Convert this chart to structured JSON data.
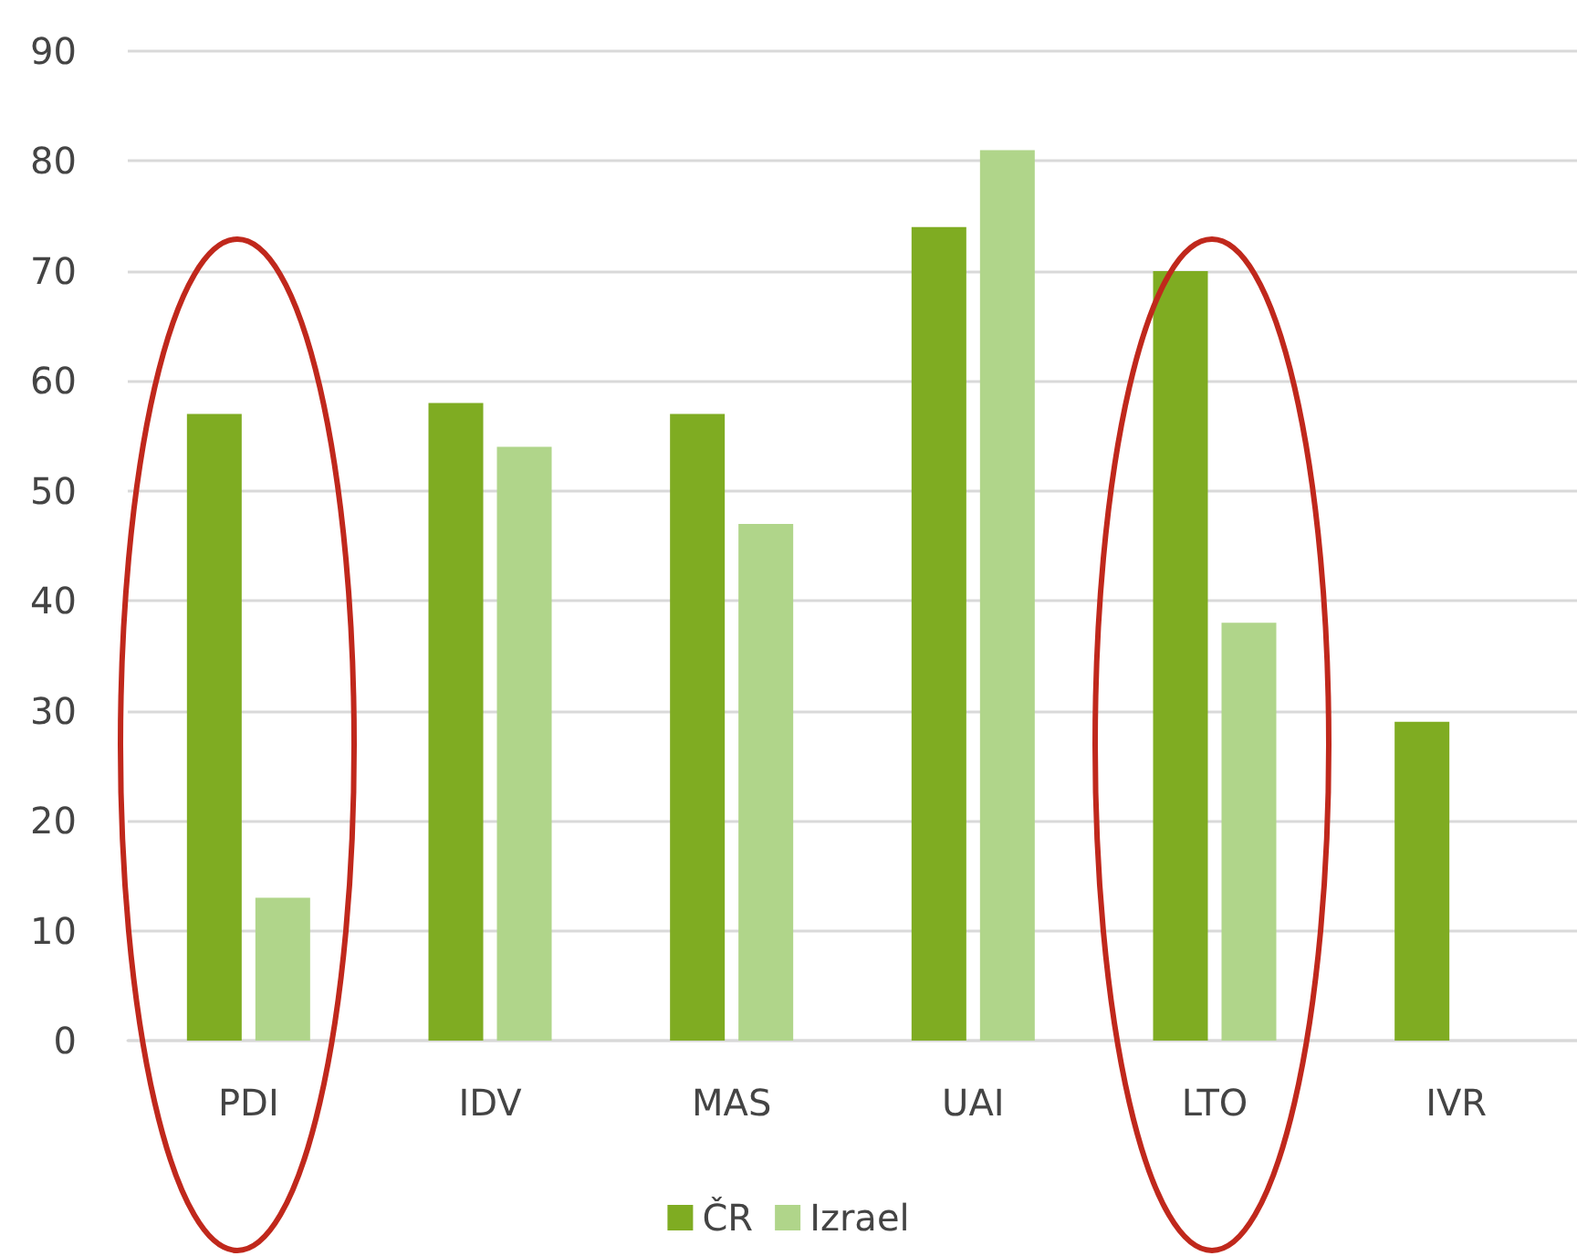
{
  "chart_data": {
    "type": "bar",
    "categories": [
      "PDI",
      "IDV",
      "MAS",
      "UAI",
      "LTO",
      "IVR"
    ],
    "series": [
      {
        "name": "ČR",
        "color": "#7fac22",
        "values": [
          57,
          58,
          57,
          74,
          70,
          29
        ]
      },
      {
        "name": "Izrael",
        "color": "#b0d58a",
        "values": [
          13,
          54,
          47,
          81,
          38,
          null
        ]
      }
    ],
    "ylim": [
      0,
      90
    ],
    "yticks": [
      0,
      10,
      20,
      30,
      40,
      50,
      60,
      70,
      80,
      90
    ],
    "grid": "y",
    "legend": "bottom"
  }
}
